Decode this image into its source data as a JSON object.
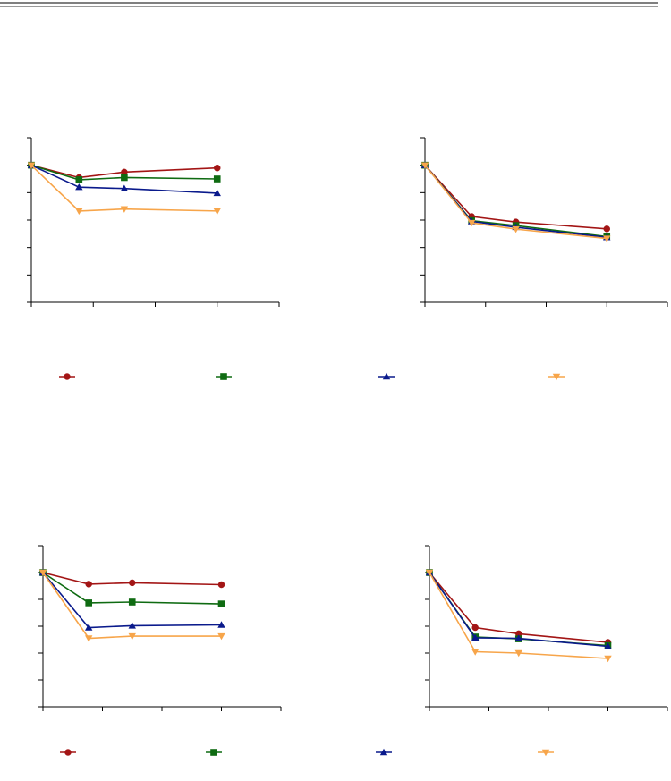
{
  "colors": {
    "series_a": "#a31515",
    "series_b": "#0f6b12",
    "series_c": "#0a1a8c",
    "series_d": "#f7a54a",
    "axis": "#000000"
  },
  "legend": [
    {
      "marker": "circle",
      "color_key": "series_a",
      "label": ""
    },
    {
      "marker": "square",
      "color_key": "series_b",
      "label": ""
    },
    {
      "marker": "triangle-up",
      "color_key": "series_c",
      "label": ""
    },
    {
      "marker": "triangle-down",
      "color_key": "series_d",
      "label": ""
    }
  ],
  "chart_data": [
    {
      "type": "line",
      "title": "",
      "xlabel": "",
      "ylabel": "",
      "xlim": [
        0,
        4
      ],
      "ylim": [
        0,
        6
      ],
      "x_ticks": 4,
      "y_ticks": 6,
      "grid": false,
      "series": [
        {
          "marker": "circle",
          "color_key": "series_a",
          "x": [
            0,
            0.77,
            1.5,
            3
          ],
          "y": [
            5.0,
            4.55,
            4.75,
            4.9
          ]
        },
        {
          "marker": "square",
          "color_key": "series_b",
          "x": [
            0,
            0.77,
            1.5,
            3
          ],
          "y": [
            5.0,
            4.47,
            4.55,
            4.5
          ]
        },
        {
          "marker": "triangle-up",
          "color_key": "series_c",
          "x": [
            0,
            0.77,
            1.5,
            3
          ],
          "y": [
            5.0,
            4.2,
            4.15,
            3.98
          ]
        },
        {
          "marker": "triangle-down",
          "color_key": "series_d",
          "x": [
            0,
            0.77,
            1.5,
            3
          ],
          "y": [
            5.0,
            3.33,
            3.4,
            3.33
          ]
        }
      ]
    },
    {
      "type": "line",
      "title": "",
      "xlabel": "",
      "ylabel": "",
      "xlim": [
        0,
        4
      ],
      "ylim": [
        0,
        6
      ],
      "x_ticks": 4,
      "y_ticks": 6,
      "grid": false,
      "series": [
        {
          "marker": "circle",
          "color_key": "series_a",
          "x": [
            0,
            0.77,
            1.5,
            3
          ],
          "y": [
            5.0,
            3.13,
            2.93,
            2.68
          ]
        },
        {
          "marker": "square",
          "color_key": "series_b",
          "x": [
            0,
            0.77,
            1.5,
            3
          ],
          "y": [
            5.0,
            2.98,
            2.8,
            2.4
          ]
        },
        {
          "marker": "triangle-up",
          "color_key": "series_c",
          "x": [
            0,
            0.77,
            1.5,
            3
          ],
          "y": [
            5.0,
            2.95,
            2.74,
            2.37
          ]
        },
        {
          "marker": "triangle-down",
          "color_key": "series_d",
          "x": [
            0,
            0.77,
            1.5,
            3
          ],
          "y": [
            5.0,
            2.9,
            2.67,
            2.33
          ]
        }
      ]
    },
    {
      "type": "line",
      "title": "",
      "xlabel": "",
      "ylabel": "",
      "xlim": [
        0,
        4
      ],
      "ylim": [
        0,
        6
      ],
      "x_ticks": 4,
      "y_ticks": 6,
      "grid": false,
      "series": [
        {
          "marker": "circle",
          "color_key": "series_a",
          "x": [
            0,
            0.77,
            1.5,
            3
          ],
          "y": [
            5.0,
            4.57,
            4.62,
            4.55
          ]
        },
        {
          "marker": "square",
          "color_key": "series_b",
          "x": [
            0,
            0.77,
            1.5,
            3
          ],
          "y": [
            5.0,
            3.87,
            3.9,
            3.83
          ]
        },
        {
          "marker": "triangle-up",
          "color_key": "series_c",
          "x": [
            0,
            0.77,
            1.5,
            3
          ],
          "y": [
            5.0,
            2.95,
            3.02,
            3.05
          ]
        },
        {
          "marker": "triangle-down",
          "color_key": "series_d",
          "x": [
            0,
            0.77,
            1.5,
            3
          ],
          "y": [
            5.0,
            2.55,
            2.63,
            2.63
          ]
        }
      ]
    },
    {
      "type": "line",
      "title": "",
      "xlabel": "",
      "ylabel": "",
      "xlim": [
        0,
        4
      ],
      "ylim": [
        0,
        6
      ],
      "x_ticks": 4,
      "y_ticks": 6,
      "grid": false,
      "series": [
        {
          "marker": "circle",
          "color_key": "series_a",
          "x": [
            0,
            0.77,
            1.5,
            3
          ],
          "y": [
            5.0,
            2.95,
            2.72,
            2.4
          ]
        },
        {
          "marker": "square",
          "color_key": "series_b",
          "x": [
            0,
            0.77,
            1.5,
            3
          ],
          "y": [
            5.0,
            2.6,
            2.53,
            2.28
          ]
        },
        {
          "marker": "triangle-up",
          "color_key": "series_c",
          "x": [
            0,
            0.77,
            1.5,
            3
          ],
          "y": [
            5.0,
            2.57,
            2.55,
            2.25
          ]
        },
        {
          "marker": "triangle-down",
          "color_key": "series_d",
          "x": [
            0,
            0.77,
            1.5,
            3
          ],
          "y": [
            5.0,
            2.05,
            2.0,
            1.8
          ]
        }
      ]
    }
  ]
}
